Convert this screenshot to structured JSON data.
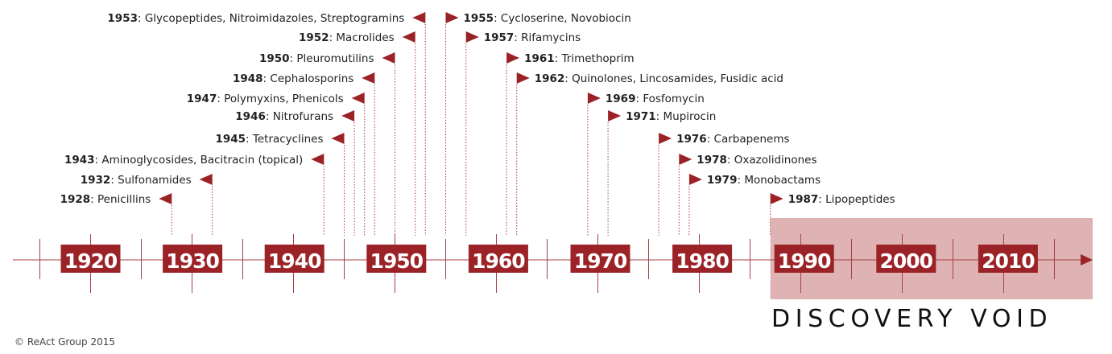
{
  "colors": {
    "accent": "#9b2226",
    "axis": "#a64045",
    "void_fill": "#dfb3b3",
    "text": "#222222"
  },
  "axis": {
    "start_year": 1915,
    "end_year": 2021
  },
  "decades": [
    "1920",
    "1930",
    "1940",
    "1950",
    "1960",
    "1970",
    "1980",
    "1990",
    "2000",
    "2010"
  ],
  "events_left": [
    {
      "year": "1953",
      "label": "Glycopeptides, Nitroimidazoles, Streptogramins"
    },
    {
      "year": "1952",
      "label": "Macrolides"
    },
    {
      "year": "1950",
      "label": "Pleuromutilins"
    },
    {
      "year": "1948",
      "label": "Cephalosporins"
    },
    {
      "year": "1947",
      "label": "Polymyxins, Phenicols"
    },
    {
      "year": "1946",
      "label": "Nitrofurans"
    },
    {
      "year": "1945",
      "label": "Tetracyclines"
    },
    {
      "year": "1943",
      "label": "Aminoglycosides, Bacitracin (topical)"
    },
    {
      "year": "1932",
      "label": "Sulfonamides"
    },
    {
      "year": "1928",
      "label": "Penicillins"
    }
  ],
  "events_right": [
    {
      "year": "1955",
      "label": "Cycloserine, Novobiocin"
    },
    {
      "year": "1957",
      "label": "Rifamycins"
    },
    {
      "year": "1961",
      "label": "Trimethoprim"
    },
    {
      "year": "1962",
      "label": "Quinolones, Lincosamides, Fusidic acid"
    },
    {
      "year": "1969",
      "label": "Fosfomycin"
    },
    {
      "year": "1971",
      "label": "Mupirocin"
    },
    {
      "year": "1976",
      "label": "Carbapenems"
    },
    {
      "year": "1978",
      "label": "Oxazolidinones"
    },
    {
      "year": "1979",
      "label": "Monobactams"
    },
    {
      "year": "1987",
      "label": "Lipopeptides"
    }
  ],
  "void": {
    "label": "DISCOVERY VOID",
    "from_year": 1987
  },
  "credit": "© ReAct Group 2015"
}
